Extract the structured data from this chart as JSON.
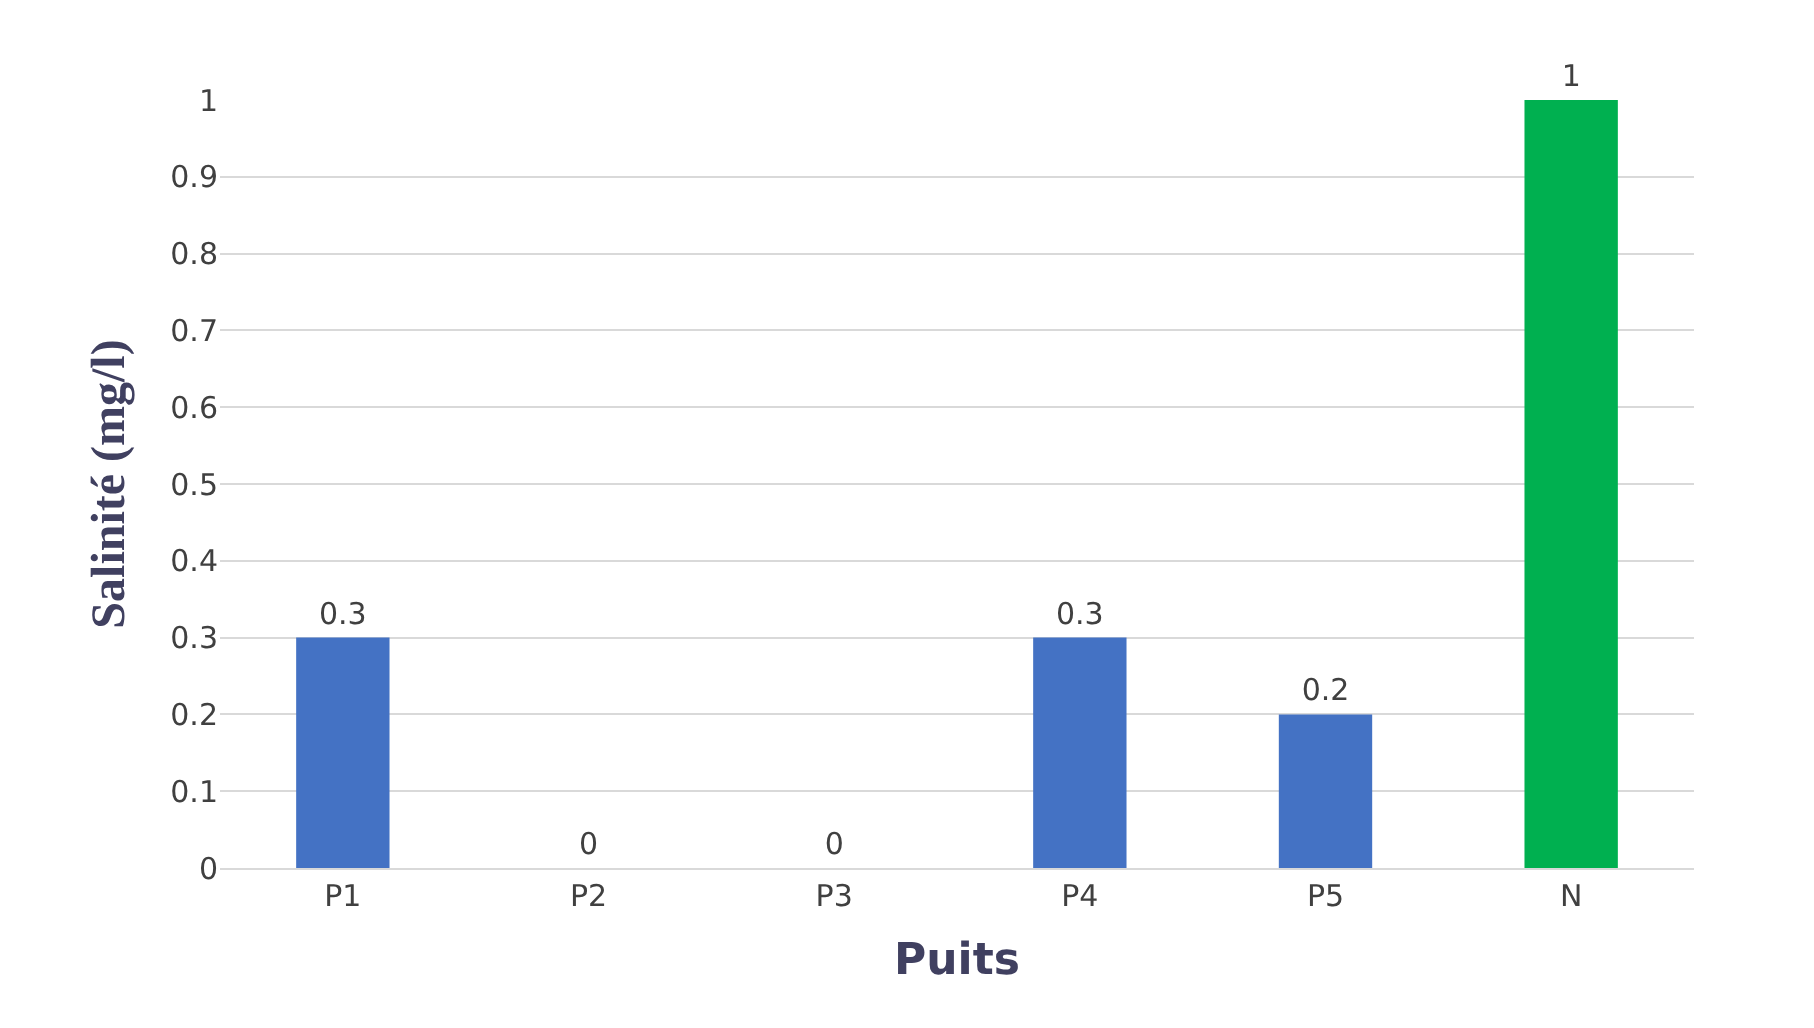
{
  "chart_data": {
    "type": "bar",
    "categories": [
      "P1",
      "P2",
      "P3",
      "P4",
      "P5",
      "N"
    ],
    "values": [
      0.3,
      0,
      0,
      0.3,
      0.2,
      1
    ],
    "colors": [
      "#4472c4",
      "#4472c4",
      "#4472c4",
      "#4472c4",
      "#4472c4",
      "#00b050"
    ],
    "xlabel": "Puits",
    "ylabel": "Salinité (mg/l)",
    "ylim": [
      0,
      1
    ],
    "yticks": [
      0,
      0.1,
      0.2,
      0.3,
      0.4,
      0.5,
      0.6,
      0.7,
      0.8,
      0.9,
      1
    ],
    "grid": "y",
    "data_labels": true
  }
}
